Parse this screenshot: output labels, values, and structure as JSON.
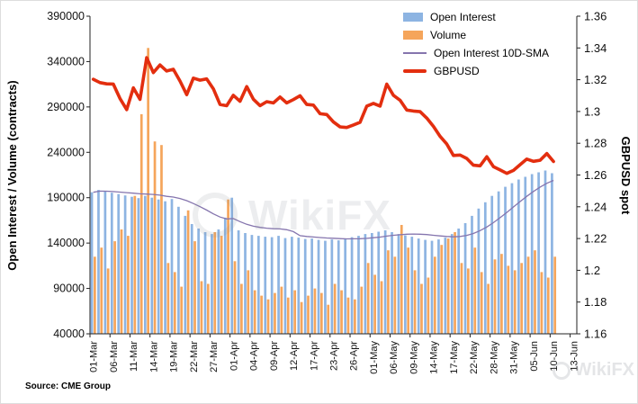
{
  "source": "Source: CME Group",
  "watermark": "WikiFX",
  "left_axis": {
    "title": "Open Interest / Volume (contracts)",
    "min": 40000,
    "max": 390000,
    "step": 50000,
    "tick_labels": [
      "390000",
      "340000",
      "290000",
      "240000",
      "190000",
      "140000",
      "90000",
      "40000"
    ]
  },
  "right_axis": {
    "title": "GBPUSD spot",
    "min": 1.16,
    "max": 1.36,
    "step": 0.02,
    "tick_labels": [
      "1.36",
      "1.34",
      "1.32",
      "1.3",
      "1.28",
      "1.26",
      "1.24",
      "1.22",
      "1.2",
      "1.18",
      "1.16"
    ]
  },
  "x_axis": {
    "labels": [
      "01-Mar",
      "06-Mar",
      "11-Mar",
      "14-Mar",
      "19-Mar",
      "22-Mar",
      "27-Mar",
      "01-Apr",
      "04-Apr",
      "09-Apr",
      "12-Apr",
      "17-Apr",
      "23-Apr",
      "26-Apr",
      "01-May",
      "06-May",
      "09-May",
      "14-May",
      "17-May",
      "22-May",
      "28-May",
      "31-May",
      "05-Jun",
      "10-Jun",
      "13-Jun"
    ],
    "slot_step": 3,
    "total_slots": 73
  },
  "chart_data": {
    "type": "combo",
    "title": "",
    "left_axis_range": [
      40000,
      390000
    ],
    "right_axis_range": [
      1.16,
      1.36
    ],
    "grid": false,
    "legend_position": "top-center",
    "categories": [
      "01-Mar",
      "04-Mar",
      "05-Mar",
      "06-Mar",
      "07-Mar",
      "08-Mar",
      "11-Mar",
      "12-Mar",
      "13-Mar",
      "14-Mar",
      "15-Mar",
      "18-Mar",
      "19-Mar",
      "20-Mar",
      "21-Mar",
      "22-Mar",
      "25-Mar",
      "26-Mar",
      "27-Mar",
      "28-Mar",
      "29-Mar",
      "01-Apr",
      "02-Apr",
      "03-Apr",
      "04-Apr",
      "05-Apr",
      "08-Apr",
      "09-Apr",
      "10-Apr",
      "11-Apr",
      "12-Apr",
      "15-Apr",
      "16-Apr",
      "17-Apr",
      "18-Apr",
      "22-Apr",
      "23-Apr",
      "24-Apr",
      "25-Apr",
      "26-Apr",
      "29-Apr",
      "30-Apr",
      "01-May",
      "02-May",
      "03-May",
      "06-May",
      "07-May",
      "08-May",
      "09-May",
      "10-May",
      "13-May",
      "14-May",
      "15-May",
      "16-May",
      "17-May",
      "20-May",
      "21-May",
      "22-May",
      "23-May",
      "24-May",
      "28-May",
      "29-May",
      "30-May",
      "31-May",
      "03-Jun",
      "04-Jun",
      "05-Jun",
      "06-Jun",
      "07-Jun",
      "10-Jun"
    ],
    "series": [
      {
        "name": "Open Interest",
        "type": "bar",
        "axis": "left",
        "color": "#8DB4E2",
        "values": [
          196000,
          198500,
          197000,
          195500,
          194000,
          192500,
          191000,
          189500,
          192000,
          190000,
          188000,
          186000,
          188500,
          180000,
          170000,
          161000,
          156000,
          152000,
          150000,
          155000,
          168000,
          190000,
          154000,
          151000,
          149000,
          148000,
          147000,
          146500,
          148000,
          145500,
          147000,
          146000,
          144500,
          145000,
          143500,
          142500,
          144000,
          143000,
          145000,
          146500,
          148000,
          150000,
          151000,
          152500,
          154000,
          152000,
          150000,
          148500,
          147000,
          145000,
          143500,
          142500,
          144000,
          146000,
          150000,
          156000,
          162000,
          170000,
          178000,
          185000,
          192000,
          197000,
          202000,
          206000,
          210000,
          213000,
          216000,
          218000,
          220000,
          217000
        ]
      },
      {
        "name": "Volume",
        "type": "bar",
        "axis": "left",
        "color": "#F5A55B",
        "values": [
          125000,
          135000,
          112000,
          142000,
          155000,
          148000,
          192000,
          282000,
          355000,
          252000,
          248000,
          118000,
          108000,
          92000,
          176000,
          142000,
          98000,
          95000,
          152000,
          148000,
          188000,
          120000,
          95000,
          110000,
          88000,
          82000,
          78000,
          85000,
          92000,
          80000,
          88000,
          75000,
          82000,
          90000,
          85000,
          72000,
          95000,
          88000,
          80000,
          78000,
          92000,
          118000,
          105000,
          98000,
          132000,
          125000,
          160000,
          135000,
          110000,
          95000,
          102000,
          125000,
          138000,
          145000,
          152000,
          118000,
          112000,
          135000,
          108000,
          95000,
          122000,
          128000,
          115000,
          110000,
          118000,
          125000,
          132000,
          108000,
          102000,
          125000
        ]
      },
      {
        "name": "Open Interest 10D-SMA",
        "type": "line",
        "axis": "left",
        "color": "#8575AE",
        "derived_from": "10-day simple moving average of Open Interest"
      },
      {
        "name": "GBPUSD",
        "type": "line",
        "axis": "right",
        "color": "#E32E0F",
        "values": [
          1.3203,
          1.3182,
          1.3174,
          1.3173,
          1.3082,
          1.3012,
          1.3149,
          1.3076,
          1.3339,
          1.3245,
          1.3293,
          1.3255,
          1.3266,
          1.3192,
          1.3106,
          1.321,
          1.3197,
          1.3205,
          1.3143,
          1.3044,
          1.3036,
          1.3102,
          1.3064,
          1.3157,
          1.3077,
          1.3037,
          1.3062,
          1.3054,
          1.3091,
          1.3054,
          1.3075,
          1.3099,
          1.3044,
          1.304,
          1.2986,
          1.2981,
          1.2934,
          1.2903,
          1.2899,
          1.2915,
          1.2932,
          1.3034,
          1.3051,
          1.3034,
          1.3172,
          1.3102,
          1.3071,
          1.3009,
          1.3003,
          1.2999,
          1.2958,
          1.2906,
          1.2843,
          1.2795,
          1.2723,
          1.2726,
          1.2704,
          1.2662,
          1.2658,
          1.2715,
          1.2652,
          1.2632,
          1.261,
          1.2629,
          1.2665,
          1.27,
          1.2686,
          1.2693,
          1.2735,
          1.2685
        ]
      }
    ]
  }
}
